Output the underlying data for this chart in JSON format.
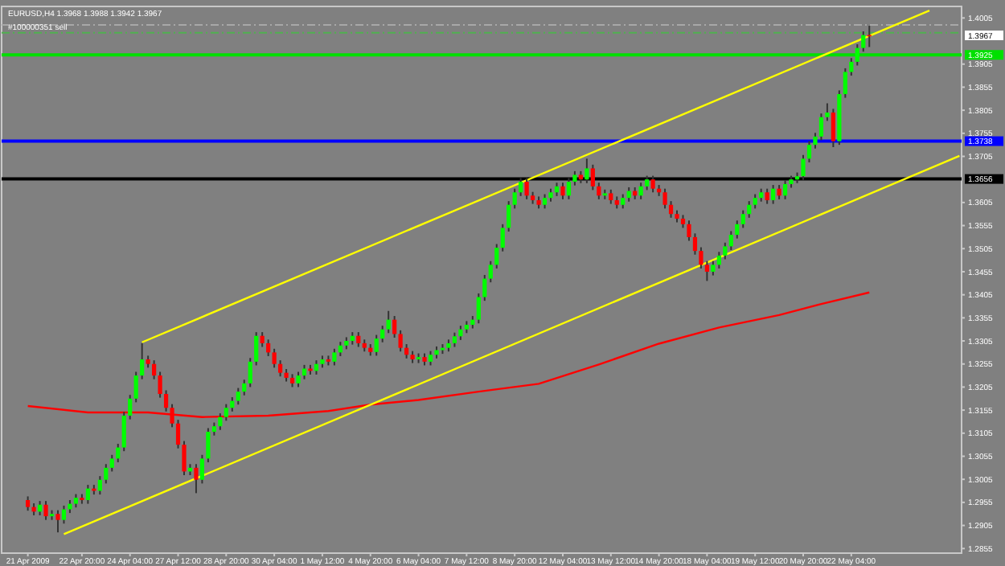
{
  "chart_data": {
    "type": "candlestick",
    "title": "EURUSD,H4 1.3968 1.3988 1.3942 1.3967",
    "categories": [
      "21 Apr 2009",
      null,
      null,
      null,
      null,
      null,
      null,
      null,
      null,
      "22 Apr 20:00",
      null,
      null,
      null,
      null,
      null,
      null,
      null,
      "24 Apr 04:00",
      null,
      null,
      null,
      null,
      null,
      null,
      null,
      "27 Apr 12:00",
      null,
      null,
      null,
      null,
      null,
      null,
      null,
      "28 Apr 20:00",
      null,
      null,
      null,
      null,
      null,
      null,
      null,
      "30 Apr 04:00",
      null,
      null,
      null,
      null,
      null,
      null,
      null,
      "1 May 12:00",
      null,
      null,
      null,
      null,
      null,
      null,
      null,
      "4 May 20:00",
      null,
      null,
      null,
      null,
      null,
      null,
      null,
      "6 May 04:00",
      null,
      null,
      null,
      null,
      null,
      null,
      null,
      "7 May 12:00",
      null,
      null,
      null,
      null,
      null,
      null,
      null,
      "8 May 20:00",
      null,
      null,
      null,
      null,
      null,
      null,
      null,
      "12 May 04:00",
      null,
      null,
      null,
      null,
      null,
      null,
      null,
      "13 May 12:00",
      null,
      null,
      null,
      null,
      null,
      null,
      null,
      "14 May 20:00",
      null,
      null,
      null,
      null,
      null,
      null,
      null,
      "18 May 04:00",
      null,
      null,
      null,
      null,
      null,
      null,
      null,
      "19 May 12:00",
      null,
      null,
      null,
      null,
      null,
      null,
      null,
      "20 May 20:00",
      null,
      null,
      null,
      null,
      null,
      null,
      null,
      "22 May 04:00",
      null,
      null,
      null,
      null,
      null,
      null,
      null,
      null,
      null,
      null,
      null,
      null,
      null,
      null,
      null,
      null,
      null,
      null
    ],
    "ohlc": [
      [
        1.296,
        1.2968,
        1.2937,
        1.2945
      ],
      [
        1.2945,
        1.2953,
        1.2927,
        1.2935
      ],
      [
        1.2935,
        1.2958,
        1.2927,
        1.295
      ],
      [
        1.295,
        1.2958,
        1.2917,
        1.2925
      ],
      [
        1.2925,
        1.2938,
        1.2917,
        1.293
      ],
      [
        1.293,
        1.2938,
        1.289,
        1.2917
      ],
      [
        1.2917,
        1.2948,
        1.2909,
        1.294
      ],
      [
        1.294,
        1.296,
        1.2932,
        1.2952
      ],
      [
        1.2952,
        1.2973,
        1.2944,
        1.2965
      ],
      [
        1.2965,
        1.2973,
        1.2952,
        1.296
      ],
      [
        1.296,
        1.2993,
        1.2952,
        1.2985
      ],
      [
        1.2985,
        1.2993,
        1.2972,
        1.298
      ],
      [
        1.298,
        1.3012,
        1.2972,
        1.3004
      ],
      [
        1.3004,
        1.3038,
        1.2996,
        1.303
      ],
      [
        1.303,
        1.3058,
        1.3022,
        1.305
      ],
      [
        1.305,
        1.3082,
        1.3042,
        1.3074
      ],
      [
        1.3074,
        1.3151,
        1.3066,
        1.3143
      ],
      [
        1.3143,
        1.3188,
        1.3135,
        1.318
      ],
      [
        1.318,
        1.3238,
        1.3172,
        1.323
      ],
      [
        1.323,
        1.33,
        1.3222,
        1.3265
      ],
      [
        1.3265,
        1.3273,
        1.3247,
        1.3255
      ],
      [
        1.3255,
        1.3263,
        1.3222,
        1.323
      ],
      [
        1.323,
        1.3238,
        1.3182,
        1.319
      ],
      [
        1.319,
        1.3198,
        1.3152,
        1.316
      ],
      [
        1.316,
        1.3168,
        1.3118,
        1.3126
      ],
      [
        1.3126,
        1.3134,
        1.3072,
        1.308
      ],
      [
        1.308,
        1.3088,
        1.3014,
        1.3022
      ],
      [
        1.3022,
        1.3038,
        1.3014,
        1.303
      ],
      [
        1.303,
        1.3038,
        1.2975,
        1.3004
      ],
      [
        1.3004,
        1.3058,
        1.2996,
        1.305
      ],
      [
        1.305,
        1.3116,
        1.3042,
        1.3108
      ],
      [
        1.3108,
        1.3128,
        1.31,
        1.312
      ],
      [
        1.312,
        1.3148,
        1.3112,
        1.314
      ],
      [
        1.314,
        1.3168,
        1.3132,
        1.316
      ],
      [
        1.316,
        1.3183,
        1.3152,
        1.3175
      ],
      [
        1.3175,
        1.3203,
        1.3167,
        1.3195
      ],
      [
        1.3195,
        1.3221,
        1.3187,
        1.3213
      ],
      [
        1.3213,
        1.3268,
        1.3205,
        1.326
      ],
      [
        1.326,
        1.3324,
        1.3252,
        1.3316
      ],
      [
        1.3316,
        1.3324,
        1.3292,
        1.33
      ],
      [
        1.33,
        1.3308,
        1.3272,
        1.328
      ],
      [
        1.328,
        1.3288,
        1.3247,
        1.3255
      ],
      [
        1.3255,
        1.3263,
        1.3228,
        1.3236
      ],
      [
        1.3236,
        1.3244,
        1.3217,
        1.3225
      ],
      [
        1.3225,
        1.3233,
        1.3205,
        1.3213
      ],
      [
        1.3213,
        1.3238,
        1.3205,
        1.323
      ],
      [
        1.323,
        1.3253,
        1.3222,
        1.3245
      ],
      [
        1.3245,
        1.3253,
        1.3232,
        1.324
      ],
      [
        1.324,
        1.3263,
        1.3232,
        1.3255
      ],
      [
        1.3255,
        1.3273,
        1.3247,
        1.3265
      ],
      [
        1.3265,
        1.3273,
        1.3252,
        1.326
      ],
      [
        1.326,
        1.3288,
        1.3252,
        1.328
      ],
      [
        1.328,
        1.3303,
        1.3272,
        1.3295
      ],
      [
        1.3295,
        1.3313,
        1.3287,
        1.3305
      ],
      [
        1.3305,
        1.3324,
        1.3297,
        1.3316
      ],
      [
        1.3316,
        1.3324,
        1.3292,
        1.33
      ],
      [
        1.33,
        1.3308,
        1.3282,
        1.329
      ],
      [
        1.329,
        1.3298,
        1.3273,
        1.3281
      ],
      [
        1.3281,
        1.3318,
        1.3273,
        1.331
      ],
      [
        1.331,
        1.3338,
        1.3302,
        1.333
      ],
      [
        1.333,
        1.337,
        1.3322,
        1.3351
      ],
      [
        1.3351,
        1.3359,
        1.3312,
        1.332
      ],
      [
        1.332,
        1.3328,
        1.3282,
        1.329
      ],
      [
        1.329,
        1.3298,
        1.3267,
        1.3275
      ],
      [
        1.3275,
        1.3283,
        1.3257,
        1.3265
      ],
      [
        1.3265,
        1.3278,
        1.3257,
        1.327
      ],
      [
        1.327,
        1.3278,
        1.3252,
        1.326
      ],
      [
        1.326,
        1.3283,
        1.3252,
        1.3275
      ],
      [
        1.3275,
        1.3293,
        1.3267,
        1.3285
      ],
      [
        1.3285,
        1.3298,
        1.3277,
        1.329
      ],
      [
        1.329,
        1.3308,
        1.3282,
        1.33
      ],
      [
        1.33,
        1.3323,
        1.3292,
        1.3315
      ],
      [
        1.3315,
        1.3338,
        1.3307,
        1.333
      ],
      [
        1.333,
        1.3348,
        1.3322,
        1.334
      ],
      [
        1.334,
        1.3359,
        1.3332,
        1.3351
      ],
      [
        1.3351,
        1.3408,
        1.3343,
        1.34
      ],
      [
        1.34,
        1.3448,
        1.3392,
        1.344
      ],
      [
        1.344,
        1.3478,
        1.3432,
        1.347
      ],
      [
        1.347,
        1.3515,
        1.3462,
        1.3507
      ],
      [
        1.3507,
        1.3558,
        1.3499,
        1.355
      ],
      [
        1.355,
        1.3608,
        1.3542,
        1.36
      ],
      [
        1.36,
        1.3635,
        1.3592,
        1.3627
      ],
      [
        1.3627,
        1.3658,
        1.3619,
        1.365
      ],
      [
        1.365,
        1.3658,
        1.3612,
        1.362
      ],
      [
        1.362,
        1.3628,
        1.3602,
        1.361
      ],
      [
        1.361,
        1.3618,
        1.3592,
        1.36
      ],
      [
        1.36,
        1.3623,
        1.3592,
        1.3615
      ],
      [
        1.3615,
        1.3635,
        1.3607,
        1.3627
      ],
      [
        1.3627,
        1.3648,
        1.3619,
        1.364
      ],
      [
        1.364,
        1.3648,
        1.3612,
        1.362
      ],
      [
        1.362,
        1.3658,
        1.3612,
        1.365
      ],
      [
        1.365,
        1.3673,
        1.3642,
        1.3665
      ],
      [
        1.3665,
        1.3673,
        1.3647,
        1.3655
      ],
      [
        1.3655,
        1.37,
        1.3647,
        1.3679
      ],
      [
        1.3679,
        1.3687,
        1.3632,
        1.364
      ],
      [
        1.364,
        1.3648,
        1.3612,
        1.362
      ],
      [
        1.362,
        1.3633,
        1.3612,
        1.3625
      ],
      [
        1.3625,
        1.3633,
        1.3602,
        1.361
      ],
      [
        1.361,
        1.3618,
        1.3592,
        1.36
      ],
      [
        1.36,
        1.3623,
        1.3592,
        1.3615
      ],
      [
        1.3615,
        1.3638,
        1.3607,
        1.363
      ],
      [
        1.363,
        1.3638,
        1.3612,
        1.362
      ],
      [
        1.362,
        1.3648,
        1.3612,
        1.364
      ],
      [
        1.364,
        1.3663,
        1.3632,
        1.3655
      ],
      [
        1.3655,
        1.3663,
        1.3627,
        1.3635
      ],
      [
        1.3635,
        1.3643,
        1.3619,
        1.3627
      ],
      [
        1.3627,
        1.3635,
        1.3592,
        1.36
      ],
      [
        1.36,
        1.3608,
        1.3572,
        1.358
      ],
      [
        1.358,
        1.3588,
        1.3562,
        1.357
      ],
      [
        1.357,
        1.3578,
        1.355,
        1.3558
      ],
      [
        1.3558,
        1.3566,
        1.3522,
        1.353
      ],
      [
        1.353,
        1.3538,
        1.3492,
        1.35
      ],
      [
        1.35,
        1.3508,
        1.3462,
        1.347
      ],
      [
        1.347,
        1.3478,
        1.3435,
        1.3455
      ],
      [
        1.3455,
        1.3478,
        1.3447,
        1.347
      ],
      [
        1.347,
        1.3498,
        1.3462,
        1.349
      ],
      [
        1.349,
        1.3518,
        1.3482,
        1.351
      ],
      [
        1.351,
        1.3543,
        1.3502,
        1.3535
      ],
      [
        1.3535,
        1.3566,
        1.3527,
        1.3558
      ],
      [
        1.3558,
        1.3588,
        1.355,
        1.358
      ],
      [
        1.358,
        1.3608,
        1.3572,
        1.36
      ],
      [
        1.36,
        1.3623,
        1.3592,
        1.3615
      ],
      [
        1.3615,
        1.3635,
        1.3607,
        1.3627
      ],
      [
        1.3627,
        1.3635,
        1.3602,
        1.361
      ],
      [
        1.361,
        1.3643,
        1.3602,
        1.3635
      ],
      [
        1.3635,
        1.3643,
        1.3612,
        1.362
      ],
      [
        1.362,
        1.3653,
        1.3612,
        1.3645
      ],
      [
        1.3645,
        1.3663,
        1.3637,
        1.3655
      ],
      [
        1.3655,
        1.367,
        1.3647,
        1.3662
      ],
      [
        1.3662,
        1.3708,
        1.3654,
        1.37
      ],
      [
        1.37,
        1.3738,
        1.3692,
        1.373
      ],
      [
        1.373,
        1.3756,
        1.3722,
        1.3748
      ],
      [
        1.3748,
        1.3798,
        1.374,
        1.379
      ],
      [
        1.379,
        1.382,
        1.3782,
        1.38
      ],
      [
        1.38,
        1.3808,
        1.3725,
        1.3738
      ],
      [
        1.3738,
        1.3848,
        1.373,
        1.384
      ],
      [
        1.384,
        1.3896,
        1.3832,
        1.3888
      ],
      [
        1.3888,
        1.3918,
        1.388,
        1.391
      ],
      [
        1.391,
        1.3948,
        1.3902,
        1.394
      ],
      [
        1.394,
        1.3976,
        1.3932,
        1.3968
      ],
      [
        1.3968,
        1.3988,
        1.3942,
        1.3967
      ],
      null,
      null,
      null,
      null,
      null,
      null,
      null,
      null,
      null,
      null,
      null,
      null,
      null,
      null,
      null
    ],
    "series": [
      {
        "type": "line",
        "color": "#ff0000",
        "values": [
          1.3164,
          null,
          null,
          null,
          null,
          null,
          null,
          null,
          null,
          null,
          1.315,
          null,
          null,
          null,
          null,
          null,
          null,
          null,
          null,
          null,
          1.315,
          null,
          null,
          null,
          null,
          null,
          null,
          null,
          null,
          1.314,
          null,
          null,
          null,
          null,
          null,
          null,
          null,
          null,
          null,
          null,
          1.3143,
          null,
          null,
          null,
          null,
          null,
          null,
          null,
          null,
          null,
          1.3153,
          null,
          null,
          null,
          null,
          null,
          null,
          1.3167,
          null,
          null,
          null,
          null,
          null,
          null,
          null,
          1.3177,
          null,
          null,
          null,
          null,
          null,
          null,
          null,
          null,
          null,
          1.3195,
          null,
          null,
          null,
          null,
          null,
          null,
          null,
          null,
          null,
          1.3212,
          null,
          null,
          null,
          null,
          null,
          null,
          null,
          null,
          null,
          1.3254,
          null,
          null,
          null,
          null,
          null,
          null,
          null,
          null,
          null,
          1.3299,
          null,
          null,
          null,
          null,
          null,
          null,
          null,
          null,
          null,
          1.3334,
          null,
          null,
          null,
          null,
          null,
          null,
          null,
          null,
          null,
          1.3361,
          null,
          null,
          null,
          null,
          null,
          null,
          1.3385,
          null,
          null,
          null,
          null,
          null,
          null,
          null,
          1.341,
          null,
          null,
          null,
          null,
          null,
          null,
          null,
          null,
          null,
          null,
          null,
          null,
          null,
          null,
          null
        ]
      },
      {
        "type": "line",
        "color": "#ffff00",
        "values": [
          null,
          null,
          null,
          null,
          null,
          null,
          null,
          null,
          null,
          null,
          null,
          null,
          null,
          null,
          null,
          null,
          null,
          null,
          null,
          1.3302,
          null,
          null,
          null,
          null,
          null,
          null,
          null,
          null,
          null,
          null,
          null,
          null,
          null,
          null,
          null,
          null,
          null,
          null,
          null,
          null,
          null,
          null,
          null,
          null,
          null,
          null,
          null,
          null,
          null,
          null,
          null,
          null,
          null,
          null,
          null,
          null,
          null,
          null,
          null,
          null,
          null,
          null,
          null,
          null,
          null,
          null,
          null,
          null,
          null,
          null,
          null,
          null,
          null,
          null,
          null,
          null,
          null,
          null,
          null,
          null,
          null,
          null,
          null,
          null,
          null,
          null,
          null,
          null,
          null,
          null,
          null,
          null,
          null,
          null,
          null,
          null,
          null,
          null,
          null,
          null,
          null,
          null,
          null,
          null,
          null,
          null,
          null,
          null,
          null,
          null,
          null,
          null,
          null,
          null,
          null,
          null,
          null,
          null,
          null,
          null,
          null,
          null,
          null,
          null,
          null,
          null,
          null,
          null,
          null,
          null,
          null,
          null,
          null,
          null,
          null,
          null,
          null,
          null,
          null,
          null,
          null,
          null,
          null,
          null,
          null,
          null,
          null,
          null,
          null,
          null,
          1.4021,
          null,
          null,
          null,
          null,
          null
        ]
      },
      {
        "type": "line",
        "color": "#ffff00",
        "values": [
          null,
          null,
          null,
          null,
          null,
          null,
          1.2886,
          null,
          null,
          null,
          null,
          null,
          null,
          null,
          null,
          null,
          null,
          null,
          null,
          null,
          null,
          null,
          null,
          null,
          null,
          null,
          null,
          null,
          null,
          null,
          null,
          null,
          null,
          null,
          null,
          null,
          null,
          null,
          null,
          null,
          null,
          null,
          null,
          null,
          null,
          null,
          null,
          null,
          null,
          null,
          null,
          null,
          null,
          null,
          null,
          null,
          null,
          null,
          null,
          null,
          null,
          null,
          null,
          null,
          null,
          null,
          null,
          null,
          null,
          null,
          null,
          null,
          null,
          null,
          null,
          null,
          null,
          null,
          null,
          null,
          null,
          null,
          null,
          null,
          null,
          null,
          null,
          null,
          null,
          null,
          null,
          null,
          null,
          null,
          null,
          null,
          null,
          null,
          null,
          null,
          null,
          null,
          null,
          null,
          null,
          null,
          null,
          null,
          null,
          null,
          null,
          null,
          null,
          null,
          null,
          null,
          null,
          null,
          null,
          null,
          null,
          null,
          null,
          null,
          null,
          null,
          null,
          null,
          null,
          null,
          null,
          null,
          null,
          null,
          null,
          null,
          null,
          null,
          null,
          null,
          null,
          null,
          null,
          null,
          null,
          null,
          null,
          null,
          null,
          null,
          null,
          null,
          null,
          null,
          null,
          1.3706
        ]
      }
    ],
    "ylim": [
      1.2845,
      1.403
    ],
    "yticks": [
      1.4005,
      1.3905,
      1.3855,
      1.3805,
      1.3755,
      1.3705,
      1.3605,
      1.3555,
      1.3505,
      1.3455,
      1.3405,
      1.3355,
      1.3305,
      1.3255,
      1.3205,
      1.3155,
      1.3105,
      1.3055,
      1.3005,
      1.2955,
      1.2905,
      1.2855
    ],
    "ref_lines": [
      {
        "axis": "y",
        "value": 1.399,
        "color": "#a8a8a8",
        "line_style": "dashed"
      },
      {
        "axis": "y",
        "value": 1.3973,
        "color": "#50b050",
        "line_style": "dashed",
        "label": "#100000351 sell"
      },
      {
        "axis": "y",
        "value": 1.3925,
        "color": "#00e000",
        "label": "1.3925"
      },
      {
        "axis": "y",
        "value": 1.3738,
        "color": "#0000ff",
        "label": "1.3738"
      },
      {
        "axis": "y",
        "value": 1.3656,
        "color": "#000000",
        "label": "1.3656"
      }
    ],
    "annotations": [
      "1.3967"
    ],
    "grid": false
  }
}
